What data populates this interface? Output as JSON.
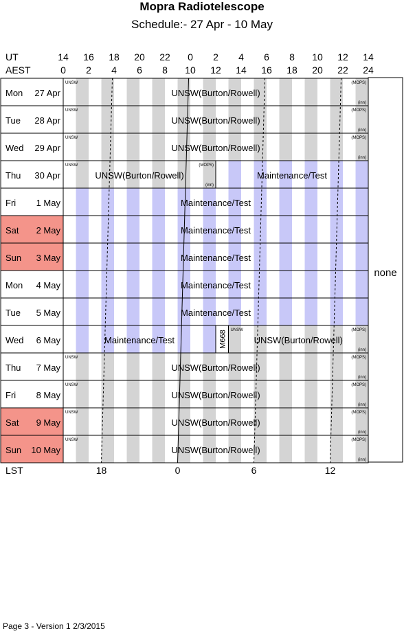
{
  "title": "Mopra Radiotelescope",
  "subtitle": "Schedule:- 27 Apr - 10 May",
  "header": {
    "ut_label": "UT",
    "aest_label": "AEST",
    "ut_ticks": [
      "14",
      "16",
      "18",
      "20",
      "22",
      "0",
      "2",
      "4",
      "6",
      "8",
      "10",
      "12",
      "14"
    ],
    "aest_ticks": [
      "0",
      "2",
      "4",
      "6",
      "8",
      "10",
      "12",
      "14",
      "16",
      "18",
      "20",
      "22",
      "24"
    ]
  },
  "lst": {
    "label": "LST",
    "ticks": [
      {
        "label": "18",
        "aest": 3.0
      },
      {
        "label": "0",
        "aest": 9.0
      },
      {
        "label": "6",
        "aest": 15.0
      },
      {
        "label": "12",
        "aest": 21.0
      }
    ]
  },
  "colors": {
    "weekend": "#f4948a",
    "maintenance_stripe": "#c8c8f8",
    "normal_stripe": "#d4d4d4"
  },
  "side_note": "none",
  "days": [
    {
      "dow": "Mon",
      "date": "27 Apr",
      "weekend": false,
      "blocks": [
        {
          "start": 0,
          "end": 24,
          "label": "UNSW(Burton/Rowell)",
          "kind": "normal",
          "tl": "UNSW",
          "tr": "(MOPS)",
          "br": "(inn)"
        }
      ]
    },
    {
      "dow": "Tue",
      "date": "28 Apr",
      "weekend": false,
      "blocks": [
        {
          "start": 0,
          "end": 24,
          "label": "UNSW(Burton/Rowell)",
          "kind": "normal",
          "tl": "UNSW",
          "tr": "(MOPS)",
          "br": "(inn)"
        }
      ]
    },
    {
      "dow": "Wed",
      "date": "29 Apr",
      "weekend": false,
      "blocks": [
        {
          "start": 0,
          "end": 24,
          "label": "UNSW(Burton/Rowell)",
          "kind": "normal",
          "tl": "UNSW",
          "tr": "(MOPS)",
          "br": "(inn)"
        }
      ]
    },
    {
      "dow": "Thu",
      "date": "30 Apr",
      "weekend": false,
      "blocks": [
        {
          "start": 0,
          "end": 12,
          "label": "UNSW(Burton/Rowell)",
          "kind": "normal",
          "tl": "UNSW",
          "tr": "(MOPS)",
          "br": "(inn)"
        },
        {
          "start": 12,
          "end": 24,
          "label": "Maintenance/Test",
          "kind": "maint"
        }
      ]
    },
    {
      "dow": "Fri",
      "date": "1 May",
      "weekend": false,
      "blocks": [
        {
          "start": 0,
          "end": 24,
          "label": "Maintenance/Test",
          "kind": "maint"
        }
      ]
    },
    {
      "dow": "Sat",
      "date": "2 May",
      "weekend": true,
      "blocks": [
        {
          "start": 0,
          "end": 24,
          "label": "Maintenance/Test",
          "kind": "maint"
        }
      ]
    },
    {
      "dow": "Sun",
      "date": "3 May",
      "weekend": true,
      "blocks": [
        {
          "start": 0,
          "end": 24,
          "label": "Maintenance/Test",
          "kind": "maint"
        }
      ]
    },
    {
      "dow": "Mon",
      "date": "4 May",
      "weekend": false,
      "blocks": [
        {
          "start": 0,
          "end": 24,
          "label": "Maintenance/Test",
          "kind": "maint"
        }
      ]
    },
    {
      "dow": "Tue",
      "date": "5 May",
      "weekend": false,
      "blocks": [
        {
          "start": 0,
          "end": 24,
          "label": "Maintenance/Test",
          "kind": "maint"
        }
      ]
    },
    {
      "dow": "Wed",
      "date": "6 May",
      "weekend": false,
      "blocks": [
        {
          "start": 0,
          "end": 12,
          "label": "Maintenance/Test",
          "kind": "maint"
        },
        {
          "start": 12,
          "end": 13,
          "label": "M668",
          "kind": "normal",
          "vertical": true
        },
        {
          "start": 13,
          "end": 24,
          "label": "UNSW(Burton/Rowell)",
          "kind": "normal",
          "tl": "UNSW",
          "tr": "(MOPS)",
          "br": "(inn)"
        }
      ]
    },
    {
      "dow": "Thu",
      "date": "7 May",
      "weekend": false,
      "blocks": [
        {
          "start": 0,
          "end": 24,
          "label": "UNSW(Burton/Rowell)",
          "kind": "normal",
          "tl": "UNSW",
          "tr": "(MOPS)",
          "br": "(inn)"
        }
      ]
    },
    {
      "dow": "Fri",
      "date": "8 May",
      "weekend": false,
      "blocks": [
        {
          "start": 0,
          "end": 24,
          "label": "UNSW(Burton/Rowell)",
          "kind": "normal",
          "tl": "UNSW",
          "tr": "(MOPS)",
          "br": "(inn)"
        }
      ]
    },
    {
      "dow": "Sat",
      "date": "9 May",
      "weekend": true,
      "blocks": [
        {
          "start": 0,
          "end": 24,
          "label": "UNSW(Burton/Rowell)",
          "kind": "normal",
          "tl": "UNSW",
          "tr": "(MOPS)",
          "br": "(inn)"
        }
      ]
    },
    {
      "dow": "Sun",
      "date": "10 May",
      "weekend": true,
      "blocks": [
        {
          "start": 0,
          "end": 24,
          "label": "UNSW(Burton/Rowell)",
          "kind": "normal",
          "tl": "UNSW",
          "tr": "(MOPS)",
          "br": "(inn)"
        }
      ]
    }
  ],
  "footer": "Page 3 - Version 1  2/3/2015"
}
